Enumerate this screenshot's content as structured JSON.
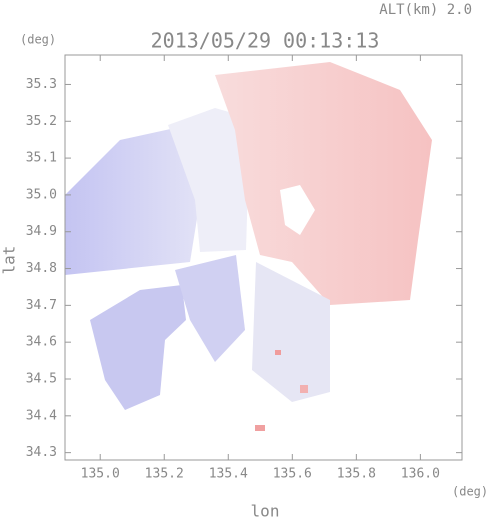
{
  "chart_data": {
    "type": "image",
    "title": "2013/05/29 00:13:13",
    "subtitle": "ALT(km) 2.0",
    "x_label": "lon",
    "y_label": "lat",
    "x_unit": "(deg)",
    "y_unit": "(deg)",
    "xlim": [
      134.89,
      136.13
    ],
    "ylim": [
      34.28,
      35.38
    ],
    "xticks": [
      {
        "value": 135,
        "label": "135.0"
      },
      135.2,
      135.4,
      135.6,
      135.8,
      {
        "value": 136,
        "label": "136.0"
      }
    ],
    "yticks": [
      34.3,
      34.4,
      34.5,
      34.6,
      34.7,
      34.8,
      34.9,
      {
        "value": 35,
        "label": "35.0"
      },
      35.1,
      35.2,
      35.3
    ]
  }
}
